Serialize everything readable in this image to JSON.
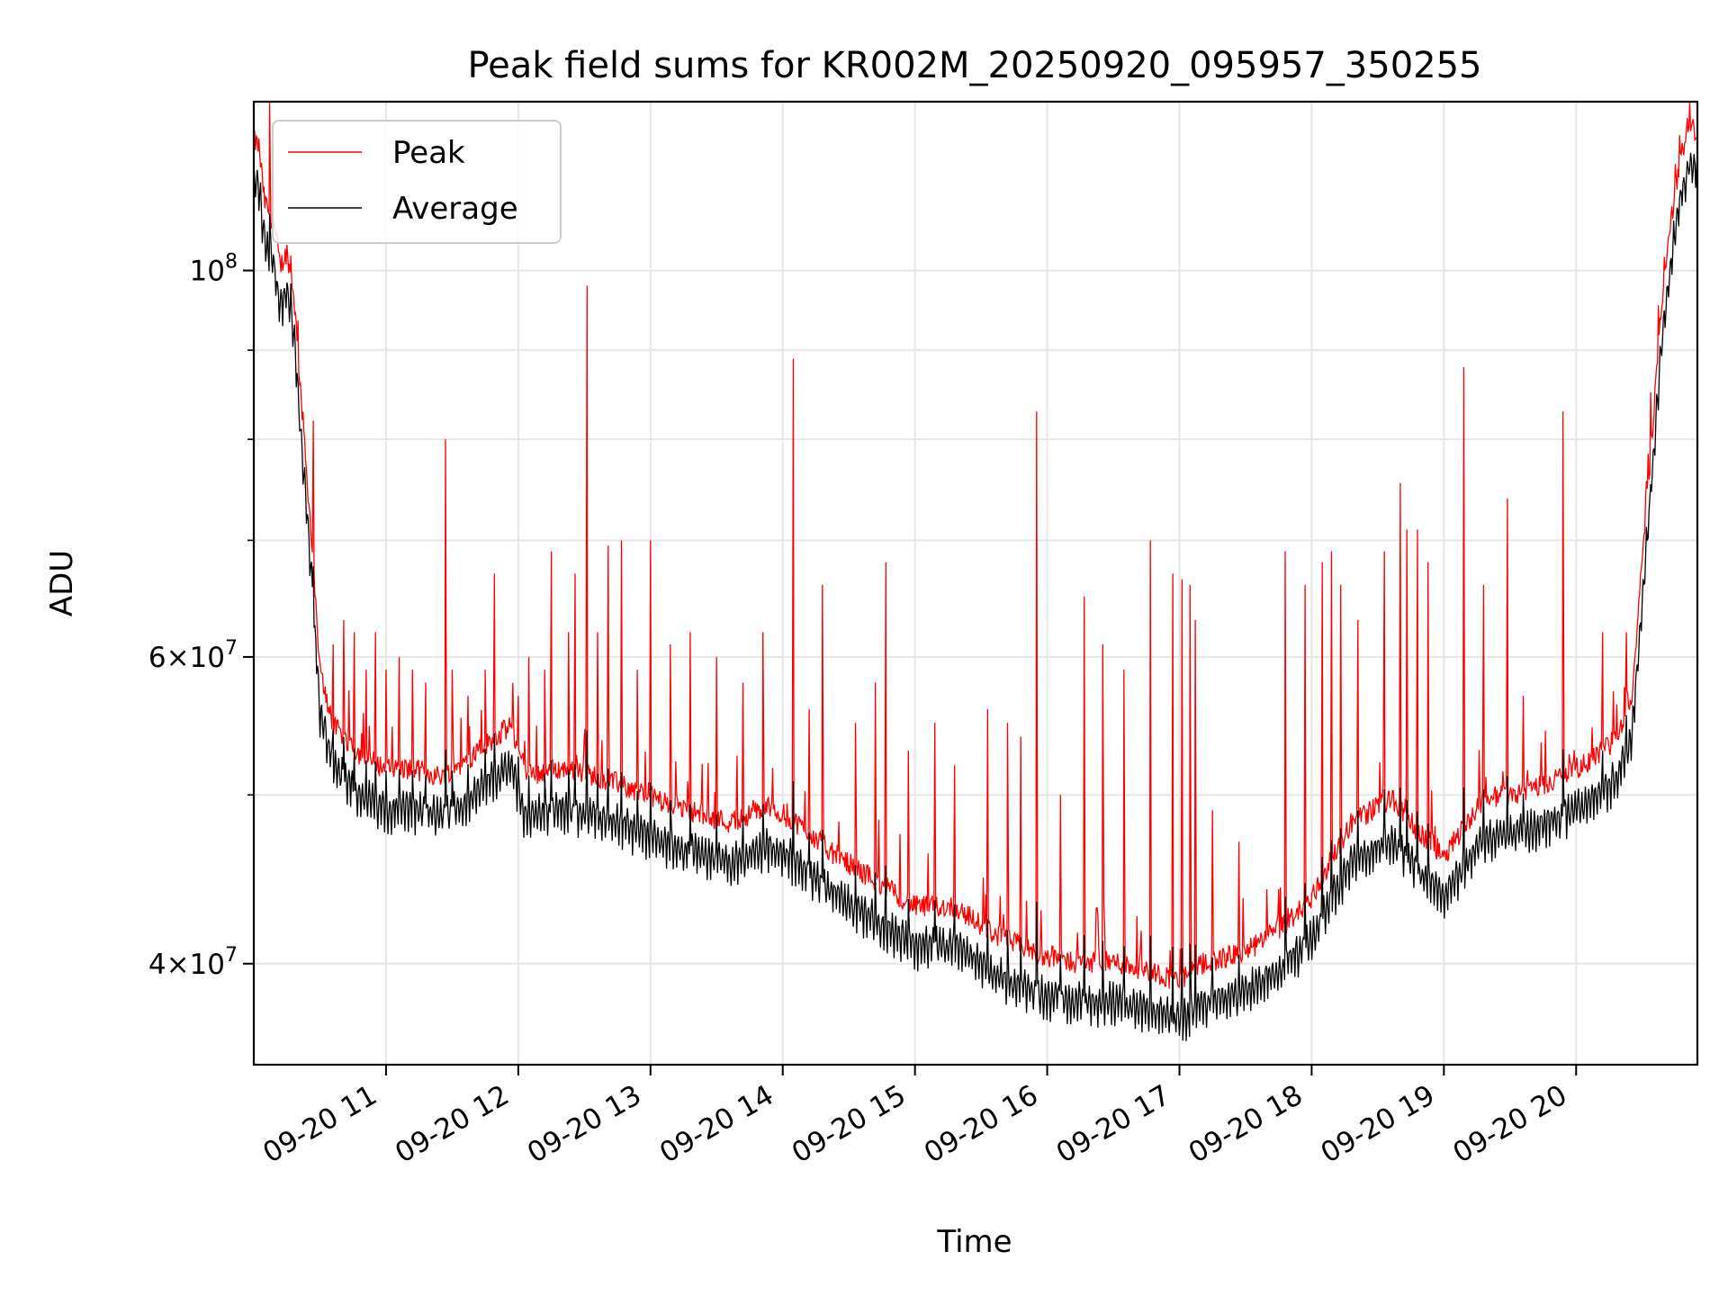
{
  "chart_data": {
    "type": "line",
    "title": "Peak field sums for KR002M_20250920_095957_350255",
    "xlabel": "Time",
    "ylabel": "ADU",
    "yscale": "log",
    "ylim": [
      35000000,
      125000000
    ],
    "xlim_hours": [
      10.0,
      20.917
    ],
    "grid": true,
    "legend_position": "upper-left",
    "x_ticks": [
      {
        "hour": 11,
        "label": "09-20 11"
      },
      {
        "hour": 12,
        "label": "09-20 12"
      },
      {
        "hour": 13,
        "label": "09-20 13"
      },
      {
        "hour": 14,
        "label": "09-20 14"
      },
      {
        "hour": 15,
        "label": "09-20 15"
      },
      {
        "hour": 16,
        "label": "09-20 16"
      },
      {
        "hour": 17,
        "label": "09-20 17"
      },
      {
        "hour": 18,
        "label": "09-20 18"
      },
      {
        "hour": 19,
        "label": "09-20 19"
      },
      {
        "hour": 20,
        "label": "09-20 20"
      }
    ],
    "y_ticks": [
      {
        "value": 40000000,
        "base": "4×10",
        "exp": "7"
      },
      {
        "value": 60000000,
        "base": "6×10",
        "exp": "7"
      },
      {
        "value": 100000000,
        "base": "10",
        "exp": "8"
      }
    ],
    "y_minor_ticks": [
      50000000,
      70000000,
      80000000,
      90000000
    ],
    "series": [
      {
        "name": "Peak",
        "color": "#ff0000",
        "baseline": {
          "x": [
            10.0,
            10.04,
            10.08,
            10.15,
            10.2,
            10.25,
            10.3,
            10.35,
            10.42,
            10.5,
            10.6,
            10.8,
            11.0,
            11.2,
            11.4,
            11.6,
            11.8,
            11.95,
            12.05,
            12.3,
            12.6,
            12.9,
            13.2,
            13.6,
            13.9,
            14.1,
            14.4,
            14.7,
            15.0,
            15.3,
            15.6,
            15.9,
            16.2,
            16.5,
            16.8,
            17.0,
            17.2,
            17.5,
            17.8,
            18.0,
            18.3,
            18.6,
            18.8,
            19.0,
            19.3,
            19.6,
            19.9,
            20.1,
            20.3,
            20.42,
            20.55,
            20.65,
            20.75,
            20.85,
            20.917
          ],
          "y": [
            117000000,
            116000000,
            108000000,
            105000000,
            99000000,
            101000000,
            96000000,
            85000000,
            72000000,
            58000000,
            54000000,
            52000000,
            51000000,
            51000000,
            50500000,
            51500000,
            53000000,
            54000000,
            50500000,
            51000000,
            50500000,
            49500000,
            48500000,
            47500000,
            48500000,
            47500000,
            45500000,
            44000000,
            42500000,
            42500000,
            41000000,
            40000000,
            39500000,
            39500000,
            39000000,
            38500000,
            39500000,
            40000000,
            41500000,
            43000000,
            47500000,
            49000000,
            47000000,
            45500000,
            49000000,
            49500000,
            50500000,
            51500000,
            53000000,
            56000000,
            75000000,
            95000000,
            110000000,
            120000000,
            118000000
          ]
        },
        "spikes": [
          {
            "x": 10.12,
            "y": 125000000
          },
          {
            "x": 10.28,
            "y": 102000000
          },
          {
            "x": 10.45,
            "y": 82000000
          },
          {
            "x": 10.6,
            "y": 61000000
          },
          {
            "x": 10.68,
            "y": 63000000
          },
          {
            "x": 10.76,
            "y": 62000000
          },
          {
            "x": 10.85,
            "y": 59000000
          },
          {
            "x": 10.92,
            "y": 62000000
          },
          {
            "x": 11.0,
            "y": 59000000
          },
          {
            "x": 11.1,
            "y": 60000000
          },
          {
            "x": 11.2,
            "y": 59000000
          },
          {
            "x": 11.3,
            "y": 58000000
          },
          {
            "x": 11.45,
            "y": 80000000
          },
          {
            "x": 11.5,
            "y": 59000000
          },
          {
            "x": 11.62,
            "y": 57000000
          },
          {
            "x": 11.75,
            "y": 59000000
          },
          {
            "x": 11.82,
            "y": 67000000
          },
          {
            "x": 12.0,
            "y": 57000000
          },
          {
            "x": 12.08,
            "y": 60000000
          },
          {
            "x": 12.2,
            "y": 59000000
          },
          {
            "x": 12.25,
            "y": 69000000
          },
          {
            "x": 12.38,
            "y": 62000000
          },
          {
            "x": 12.43,
            "y": 67000000
          },
          {
            "x": 12.52,
            "y": 98000000
          },
          {
            "x": 12.6,
            "y": 62000000
          },
          {
            "x": 12.68,
            "y": 69500000
          },
          {
            "x": 12.78,
            "y": 70000000
          },
          {
            "x": 12.9,
            "y": 59000000
          },
          {
            "x": 13.0,
            "y": 70000000
          },
          {
            "x": 13.15,
            "y": 61000000
          },
          {
            "x": 13.3,
            "y": 62000000
          },
          {
            "x": 13.5,
            "y": 60000000
          },
          {
            "x": 13.7,
            "y": 58000000
          },
          {
            "x": 13.85,
            "y": 62000000
          },
          {
            "x": 14.08,
            "y": 89000000
          },
          {
            "x": 14.2,
            "y": 56000000
          },
          {
            "x": 14.3,
            "y": 66000000
          },
          {
            "x": 14.55,
            "y": 55000000
          },
          {
            "x": 14.7,
            "y": 58000000
          },
          {
            "x": 14.78,
            "y": 68000000
          },
          {
            "x": 14.95,
            "y": 53000000
          },
          {
            "x": 15.15,
            "y": 55000000
          },
          {
            "x": 15.3,
            "y": 52000000
          },
          {
            "x": 15.55,
            "y": 56000000
          },
          {
            "x": 15.7,
            "y": 55000000
          },
          {
            "x": 15.8,
            "y": 54000000
          },
          {
            "x": 15.92,
            "y": 83000000
          },
          {
            "x": 16.1,
            "y": 50000000
          },
          {
            "x": 16.28,
            "y": 65000000
          },
          {
            "x": 16.42,
            "y": 61000000
          },
          {
            "x": 16.58,
            "y": 59000000
          },
          {
            "x": 16.78,
            "y": 70000000
          },
          {
            "x": 16.95,
            "y": 67000000
          },
          {
            "x": 17.02,
            "y": 66500000
          },
          {
            "x": 17.08,
            "y": 66000000
          },
          {
            "x": 17.12,
            "y": 63000000
          },
          {
            "x": 17.25,
            "y": 49000000
          },
          {
            "x": 17.45,
            "y": 47000000
          },
          {
            "x": 17.8,
            "y": 69000000
          },
          {
            "x": 17.95,
            "y": 66000000
          },
          {
            "x": 18.08,
            "y": 68000000
          },
          {
            "x": 18.15,
            "y": 69000000
          },
          {
            "x": 18.22,
            "y": 66000000
          },
          {
            "x": 18.35,
            "y": 63000000
          },
          {
            "x": 18.55,
            "y": 69000000
          },
          {
            "x": 18.67,
            "y": 75500000
          },
          {
            "x": 18.72,
            "y": 71000000
          },
          {
            "x": 18.8,
            "y": 71000000
          },
          {
            "x": 18.88,
            "y": 68000000
          },
          {
            "x": 19.15,
            "y": 88000000
          },
          {
            "x": 19.3,
            "y": 66000000
          },
          {
            "x": 19.48,
            "y": 74000000
          },
          {
            "x": 19.6,
            "y": 57000000
          },
          {
            "x": 19.9,
            "y": 83000000
          },
          {
            "x": 20.2,
            "y": 62000000
          },
          {
            "x": 20.38,
            "y": 62000000
          }
        ]
      },
      {
        "name": "Average",
        "color": "#000000"
      }
    ]
  }
}
